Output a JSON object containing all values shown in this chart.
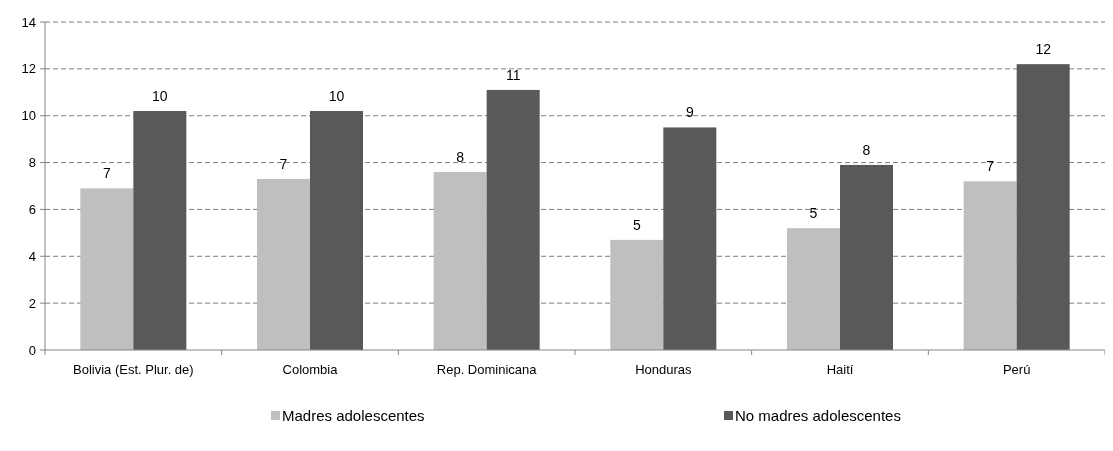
{
  "chart_data": {
    "type": "bar",
    "categories": [
      "Bolivia (Est. Plur. de)",
      "Colombia",
      "Rep. Dominicana",
      "Honduras",
      "Haití",
      "Perú"
    ],
    "series": [
      {
        "name": "Madres adolescentes",
        "color": "#bfbfbf",
        "values": [
          6.9,
          7.3,
          7.6,
          4.7,
          5.2,
          7.2
        ],
        "value_labels": [
          "7",
          "7",
          "8",
          "5",
          "5",
          "7"
        ]
      },
      {
        "name": "No madres adolescentes",
        "color": "#595959",
        "values": [
          10.2,
          10.2,
          11.1,
          9.5,
          7.9,
          12.2
        ],
        "value_labels": [
          "10",
          "10",
          "11",
          "9",
          "8",
          "12"
        ]
      }
    ],
    "ylim": [
      0,
      14
    ],
    "yticks": [
      0,
      2,
      4,
      6,
      8,
      10,
      12,
      14
    ],
    "grid": "y",
    "legend": "bottom"
  }
}
